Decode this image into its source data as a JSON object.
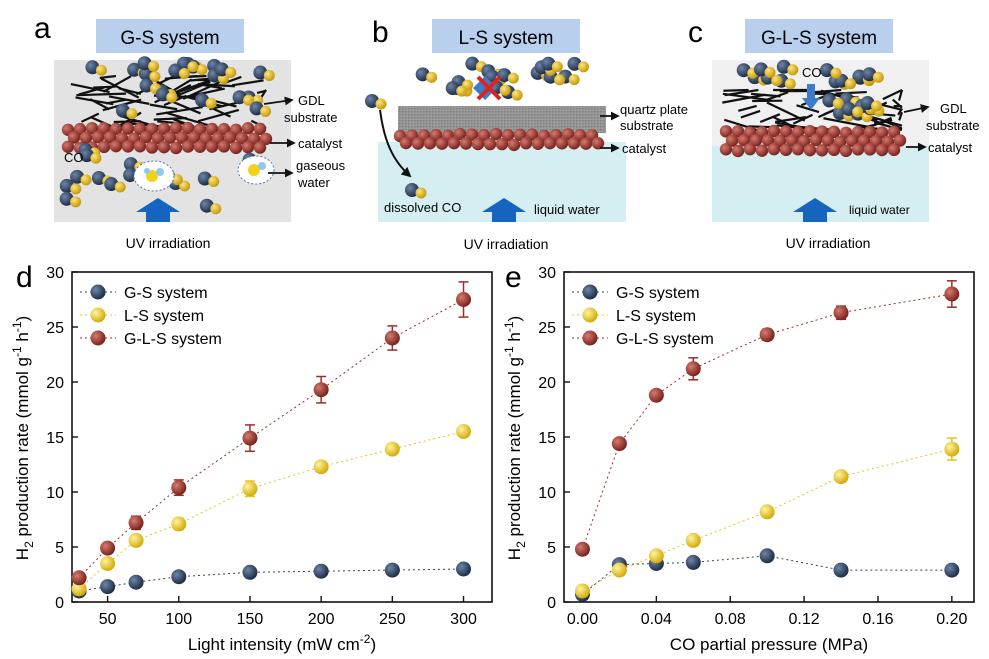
{
  "panels": {
    "a": {
      "letter": "a",
      "title": "G-S system",
      "labels": {
        "gdl": "GDL",
        "substrate": "substrate",
        "catalyst": "catalyst",
        "gaseous": "gaseous",
        "water": "water",
        "co": "CO"
      },
      "irradiation": "UV irradiation"
    },
    "b": {
      "letter": "b",
      "title": "L-S system",
      "labels": {
        "quartz": "quartz plate",
        "substrate": "substrate",
        "catalyst": "catalyst",
        "dissolved": "dissolved CO",
        "liquid": "liquid water"
      },
      "irradiation": "UV irradiation"
    },
    "c": {
      "letter": "c",
      "title": "G-L-S system",
      "labels": {
        "co": "CO",
        "gdl": "GDL",
        "substrate": "substrate",
        "catalyst": "catalyst",
        "liquid": "liquid water"
      },
      "irradiation": "UV irradiation"
    }
  },
  "colors": {
    "title_bg": "#b8cfee",
    "gs": "#2f4766",
    "ls": "#e5c21a",
    "gls": "#9a2f28",
    "gas_bg": "#e3e3e3",
    "water_bg": "#d4eef2",
    "arrow": "#1565c0"
  },
  "chart_data": [
    {
      "letter": "d",
      "type": "scatter",
      "xlabel": "Light intensity (mW cm",
      "xlabel_sup": "-2",
      "xlabel_end": ")",
      "ylabel": "H",
      "ylabel_sub": "2",
      "ylabel_mid": " production rate (mmol g",
      "ylabel_sup1": "-1",
      "ylabel_h": " h",
      "ylabel_sup2": "-1",
      "ylabel_end": ")",
      "xlim": [
        25,
        320
      ],
      "ylim": [
        0,
        30
      ],
      "xticks": [
        "50",
        "100",
        "150",
        "200",
        "250",
        "300"
      ],
      "xtick_values": [
        50,
        100,
        150,
        200,
        250,
        300
      ],
      "yticks": [
        "0",
        "5",
        "10",
        "15",
        "20",
        "25",
        "30"
      ],
      "ytick_values": [
        0,
        5,
        10,
        15,
        20,
        25,
        30
      ],
      "legend_position": "top-left",
      "x": [
        30,
        50,
        70,
        100,
        150,
        200,
        250,
        300
      ],
      "series": [
        {
          "name": "G-S system",
          "color": "#2f4766",
          "values": [
            1.0,
            1.4,
            1.8,
            2.3,
            2.7,
            2.8,
            2.9,
            3.0
          ],
          "errors": [
            0.2,
            0.2,
            0.2,
            0.3,
            0.2,
            0.2,
            0.2,
            0.2
          ]
        },
        {
          "name": "L-S system",
          "color": "#e5c21a",
          "values": [
            1.2,
            3.5,
            5.6,
            7.1,
            10.3,
            12.3,
            13.9,
            15.5
          ],
          "errors": [
            0.3,
            0.3,
            0.3,
            0.5,
            0.7,
            0.3,
            0.3,
            0.3
          ]
        },
        {
          "name": "G-L-S system",
          "color": "#9a2f28",
          "values": [
            2.2,
            4.9,
            7.2,
            10.4,
            14.9,
            19.3,
            24.0,
            27.5
          ],
          "errors": [
            0.3,
            0.3,
            0.6,
            0.7,
            1.2,
            1.2,
            1.1,
            1.6
          ]
        }
      ]
    },
    {
      "letter": "e",
      "type": "scatter",
      "xlabel": "CO partial pressure (MPa)",
      "ylabel": "H",
      "ylabel_sub": "2",
      "ylabel_mid": " production rate (mmol g",
      "ylabel_sup1": "-1",
      "ylabel_h": " h",
      "ylabel_sup2": "-1",
      "ylabel_end": ")",
      "xlim": [
        -0.01,
        0.212
      ],
      "ylim": [
        0,
        30
      ],
      "xticks": [
        "0.00",
        "0.04",
        "0.08",
        "0.12",
        "0.16",
        "0.20"
      ],
      "xtick_values": [
        0.0,
        0.04,
        0.08,
        0.12,
        0.16,
        0.2
      ],
      "yticks": [
        "0",
        "5",
        "10",
        "15",
        "20",
        "25",
        "30"
      ],
      "ytick_values": [
        0,
        5,
        10,
        15,
        20,
        25,
        30
      ],
      "legend_position": "top-left",
      "x": [
        0.0,
        0.02,
        0.04,
        0.06,
        0.1,
        0.14,
        0.2
      ],
      "series": [
        {
          "name": "G-S system",
          "color": "#2f4766",
          "values": [
            0.7,
            3.4,
            3.5,
            3.6,
            4.2,
            2.9,
            2.9
          ],
          "errors": [
            0.2,
            0.3,
            0.3,
            0.3,
            0.3,
            0.2,
            0.2
          ]
        },
        {
          "name": "L-S system",
          "color": "#e5c21a",
          "values": [
            1.0,
            2.9,
            4.2,
            5.6,
            8.2,
            11.4,
            13.9
          ],
          "errors": [
            0.2,
            0.3,
            0.3,
            0.3,
            0.3,
            0.3,
            1.0
          ]
        },
        {
          "name": "G-L-S system",
          "color": "#9a2f28",
          "values": [
            4.8,
            14.4,
            18.8,
            21.2,
            24.3,
            26.3,
            28.0
          ],
          "errors": [
            0.3,
            0.3,
            0.3,
            1.0,
            0.5,
            0.6,
            1.2
          ]
        }
      ]
    }
  ]
}
